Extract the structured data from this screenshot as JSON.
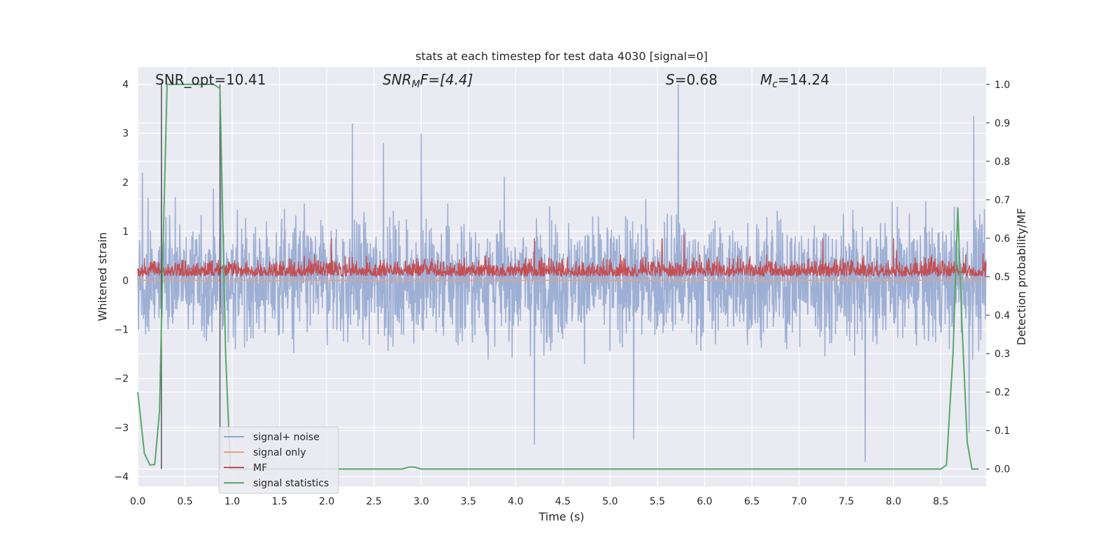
{
  "chart_data": {
    "type": "line",
    "title": "stats at each timestep for test data 4030 [signal=0]",
    "xlabel": "Time (s)",
    "ylabel": "Whitened strain",
    "ylabel_right": "Detection probability/MF",
    "xlim": [
      0.0,
      8.98
    ],
    "ylim": [
      -4.2,
      4.35
    ],
    "ylim_right": [
      -0.045,
      1.045
    ],
    "xticks": [
      "0.0",
      "0.5",
      "1.0",
      "1.5",
      "2.0",
      "2.5",
      "3.0",
      "3.5",
      "4.0",
      "4.5",
      "5.0",
      "5.5",
      "6.0",
      "6.5",
      "7.0",
      "7.5",
      "8.0",
      "8.5"
    ],
    "yticks": [
      "4",
      "3",
      "2",
      "1",
      "0",
      "−1",
      "−2",
      "−3",
      "−4"
    ],
    "yticks_right": [
      "1.0",
      "0.9",
      "0.8",
      "0.7",
      "0.6",
      "0.5",
      "0.4",
      "0.3",
      "0.2",
      "0.1",
      "0.0"
    ],
    "grid": true,
    "legend_position": "lower-left",
    "annotations": {
      "snr_opt": "SNR_opt=10.41",
      "snr_mf_prefix": "SNR",
      "snr_mf_sub": "M",
      "snr_mf_suffix": "F=[4.4]",
      "s_symbol": "S",
      "s_value": "=0.68",
      "mc_symbol": "M",
      "mc_sub": "c",
      "mc_value": "=14.24"
    },
    "series": [
      {
        "name": "signal+ noise",
        "color": "#8fa5cf",
        "style": "dense noise band",
        "typical_range": [
          -1.5,
          1.8
        ],
        "extremes": [
          -3.7,
          4.0
        ],
        "peaks": [
          [
            0.05,
            2.2
          ],
          [
            0.25,
            2.4
          ],
          [
            0.88,
            2.9
          ],
          [
            2.27,
            3.2
          ],
          [
            2.6,
            2.8
          ],
          [
            3.0,
            3.0
          ],
          [
            5.72,
            4.0
          ],
          [
            8.85,
            3.35
          ],
          [
            4.2,
            -3.35
          ],
          [
            5.25,
            -3.25
          ],
          [
            7.7,
            -3.7
          ],
          [
            8.8,
            -3.1
          ]
        ]
      },
      {
        "name": "signal only",
        "color": "#e9a07e",
        "values": [
          [
            0.0,
            0.0
          ],
          [
            8.98,
            0.0
          ]
        ]
      },
      {
        "name": "MF",
        "color": "#c44e52",
        "axis": "right",
        "style": "dense noise band",
        "typical_range": [
          0.5,
          0.56
        ],
        "peaks": [
          [
            2.05,
            0.6
          ],
          [
            4.2,
            0.6
          ],
          [
            5.55,
            0.6
          ],
          [
            5.78,
            0.61
          ],
          [
            7.25,
            0.6
          ],
          [
            8.0,
            0.6
          ]
        ]
      },
      {
        "name": "signal statistics",
        "color": "#55a868",
        "axis": "right",
        "x": [
          0.0,
          0.07,
          0.13,
          0.18,
          0.23,
          0.27,
          0.31,
          0.36,
          0.8,
          0.87,
          0.93,
          0.98,
          2.8,
          2.87,
          2.93,
          3.0,
          8.5,
          8.56,
          8.63,
          8.68,
          8.72,
          8.78,
          8.83,
          8.9
        ],
        "values": [
          0.2,
          0.04,
          0.01,
          0.012,
          0.15,
          0.6,
          1.0,
          1.0,
          1.0,
          0.99,
          0.3,
          0.0,
          0.0,
          0.005,
          0.005,
          0.0,
          0.0,
          0.01,
          0.3,
          0.68,
          0.4,
          0.07,
          0.0,
          0.0
        ]
      }
    ],
    "vertical_markers": {
      "color": "#555555",
      "x": [
        0.25,
        0.87
      ]
    },
    "legend": [
      "signal+ noise",
      "signal only",
      "MF",
      "signal statistics"
    ]
  }
}
